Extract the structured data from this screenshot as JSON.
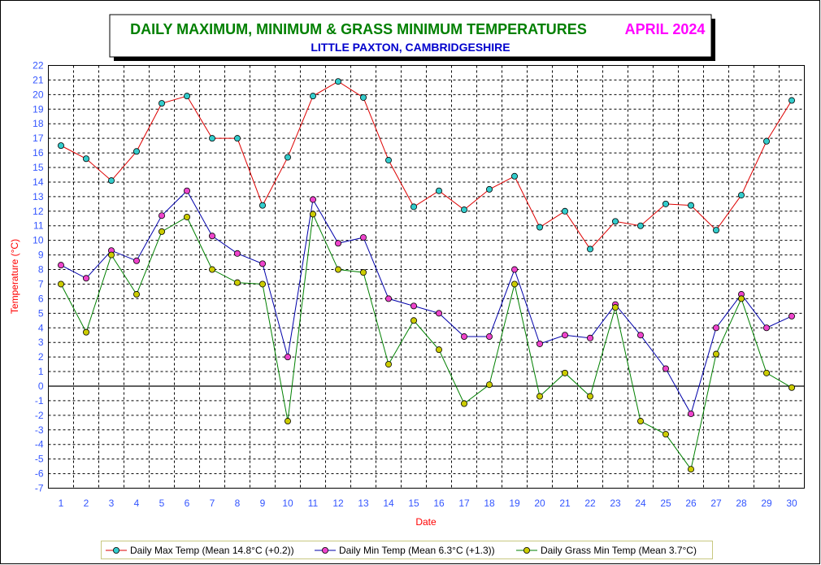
{
  "chart_data": {
    "type": "line",
    "title": "DAILY MAXIMUM, MINIMUM & GRASS MINIMUM TEMPERATURES",
    "title_month": "APRIL 2024",
    "subtitle": "LITTLE PAXTON, CAMBRIDGESHIRE",
    "xlabel": "Date",
    "ylabel": "Temperature (°C)",
    "ylim": [
      -7,
      22
    ],
    "grid": true,
    "legend_position": "bottom",
    "x": [
      1,
      2,
      3,
      4,
      5,
      6,
      7,
      8,
      9,
      10,
      11,
      12,
      13,
      14,
      15,
      16,
      17,
      18,
      19,
      20,
      21,
      22,
      23,
      24,
      25,
      26,
      27,
      28,
      29,
      30
    ],
    "series": [
      {
        "name": "Daily Max Temp (Mean 14.8°C (+0.2))",
        "line_color": "#dd0000",
        "marker_color": "#33cccc",
        "values": [
          16.5,
          15.6,
          14.1,
          16.1,
          19.4,
          19.9,
          17.0,
          17.0,
          12.4,
          15.7,
          19.9,
          20.9,
          19.8,
          15.5,
          12.3,
          13.4,
          12.1,
          13.5,
          14.4,
          10.9,
          12.0,
          9.4,
          11.3,
          11.0,
          12.5,
          12.4,
          10.7,
          13.1,
          16.8,
          19.6
        ]
      },
      {
        "name": "Daily Min Temp (Mean 6.3°C (+1.3))",
        "line_color": "#0000aa",
        "marker_color": "#ee44cc",
        "values": [
          8.3,
          7.4,
          9.3,
          8.6,
          11.7,
          13.4,
          10.3,
          9.1,
          8.4,
          2.0,
          12.8,
          9.8,
          10.2,
          6.0,
          5.5,
          5.0,
          3.4,
          3.4,
          8.0,
          2.9,
          3.5,
          3.3,
          5.6,
          3.5,
          1.2,
          -1.9,
          4.0,
          6.3,
          4.0,
          4.8
        ]
      },
      {
        "name": "Daily Grass Min Temp (Mean 3.7°C)",
        "line_color": "#008000",
        "marker_color": "#cccc00",
        "values": [
          7.0,
          3.7,
          9.0,
          6.3,
          10.6,
          11.6,
          8.0,
          7.1,
          7.0,
          -2.4,
          11.8,
          8.0,
          7.8,
          1.5,
          4.5,
          2.5,
          -1.2,
          0.1,
          7.0,
          -0.7,
          0.9,
          -0.7,
          5.4,
          -2.4,
          -3.3,
          -5.7,
          2.2,
          6.0,
          0.9,
          -0.1
        ]
      }
    ]
  }
}
